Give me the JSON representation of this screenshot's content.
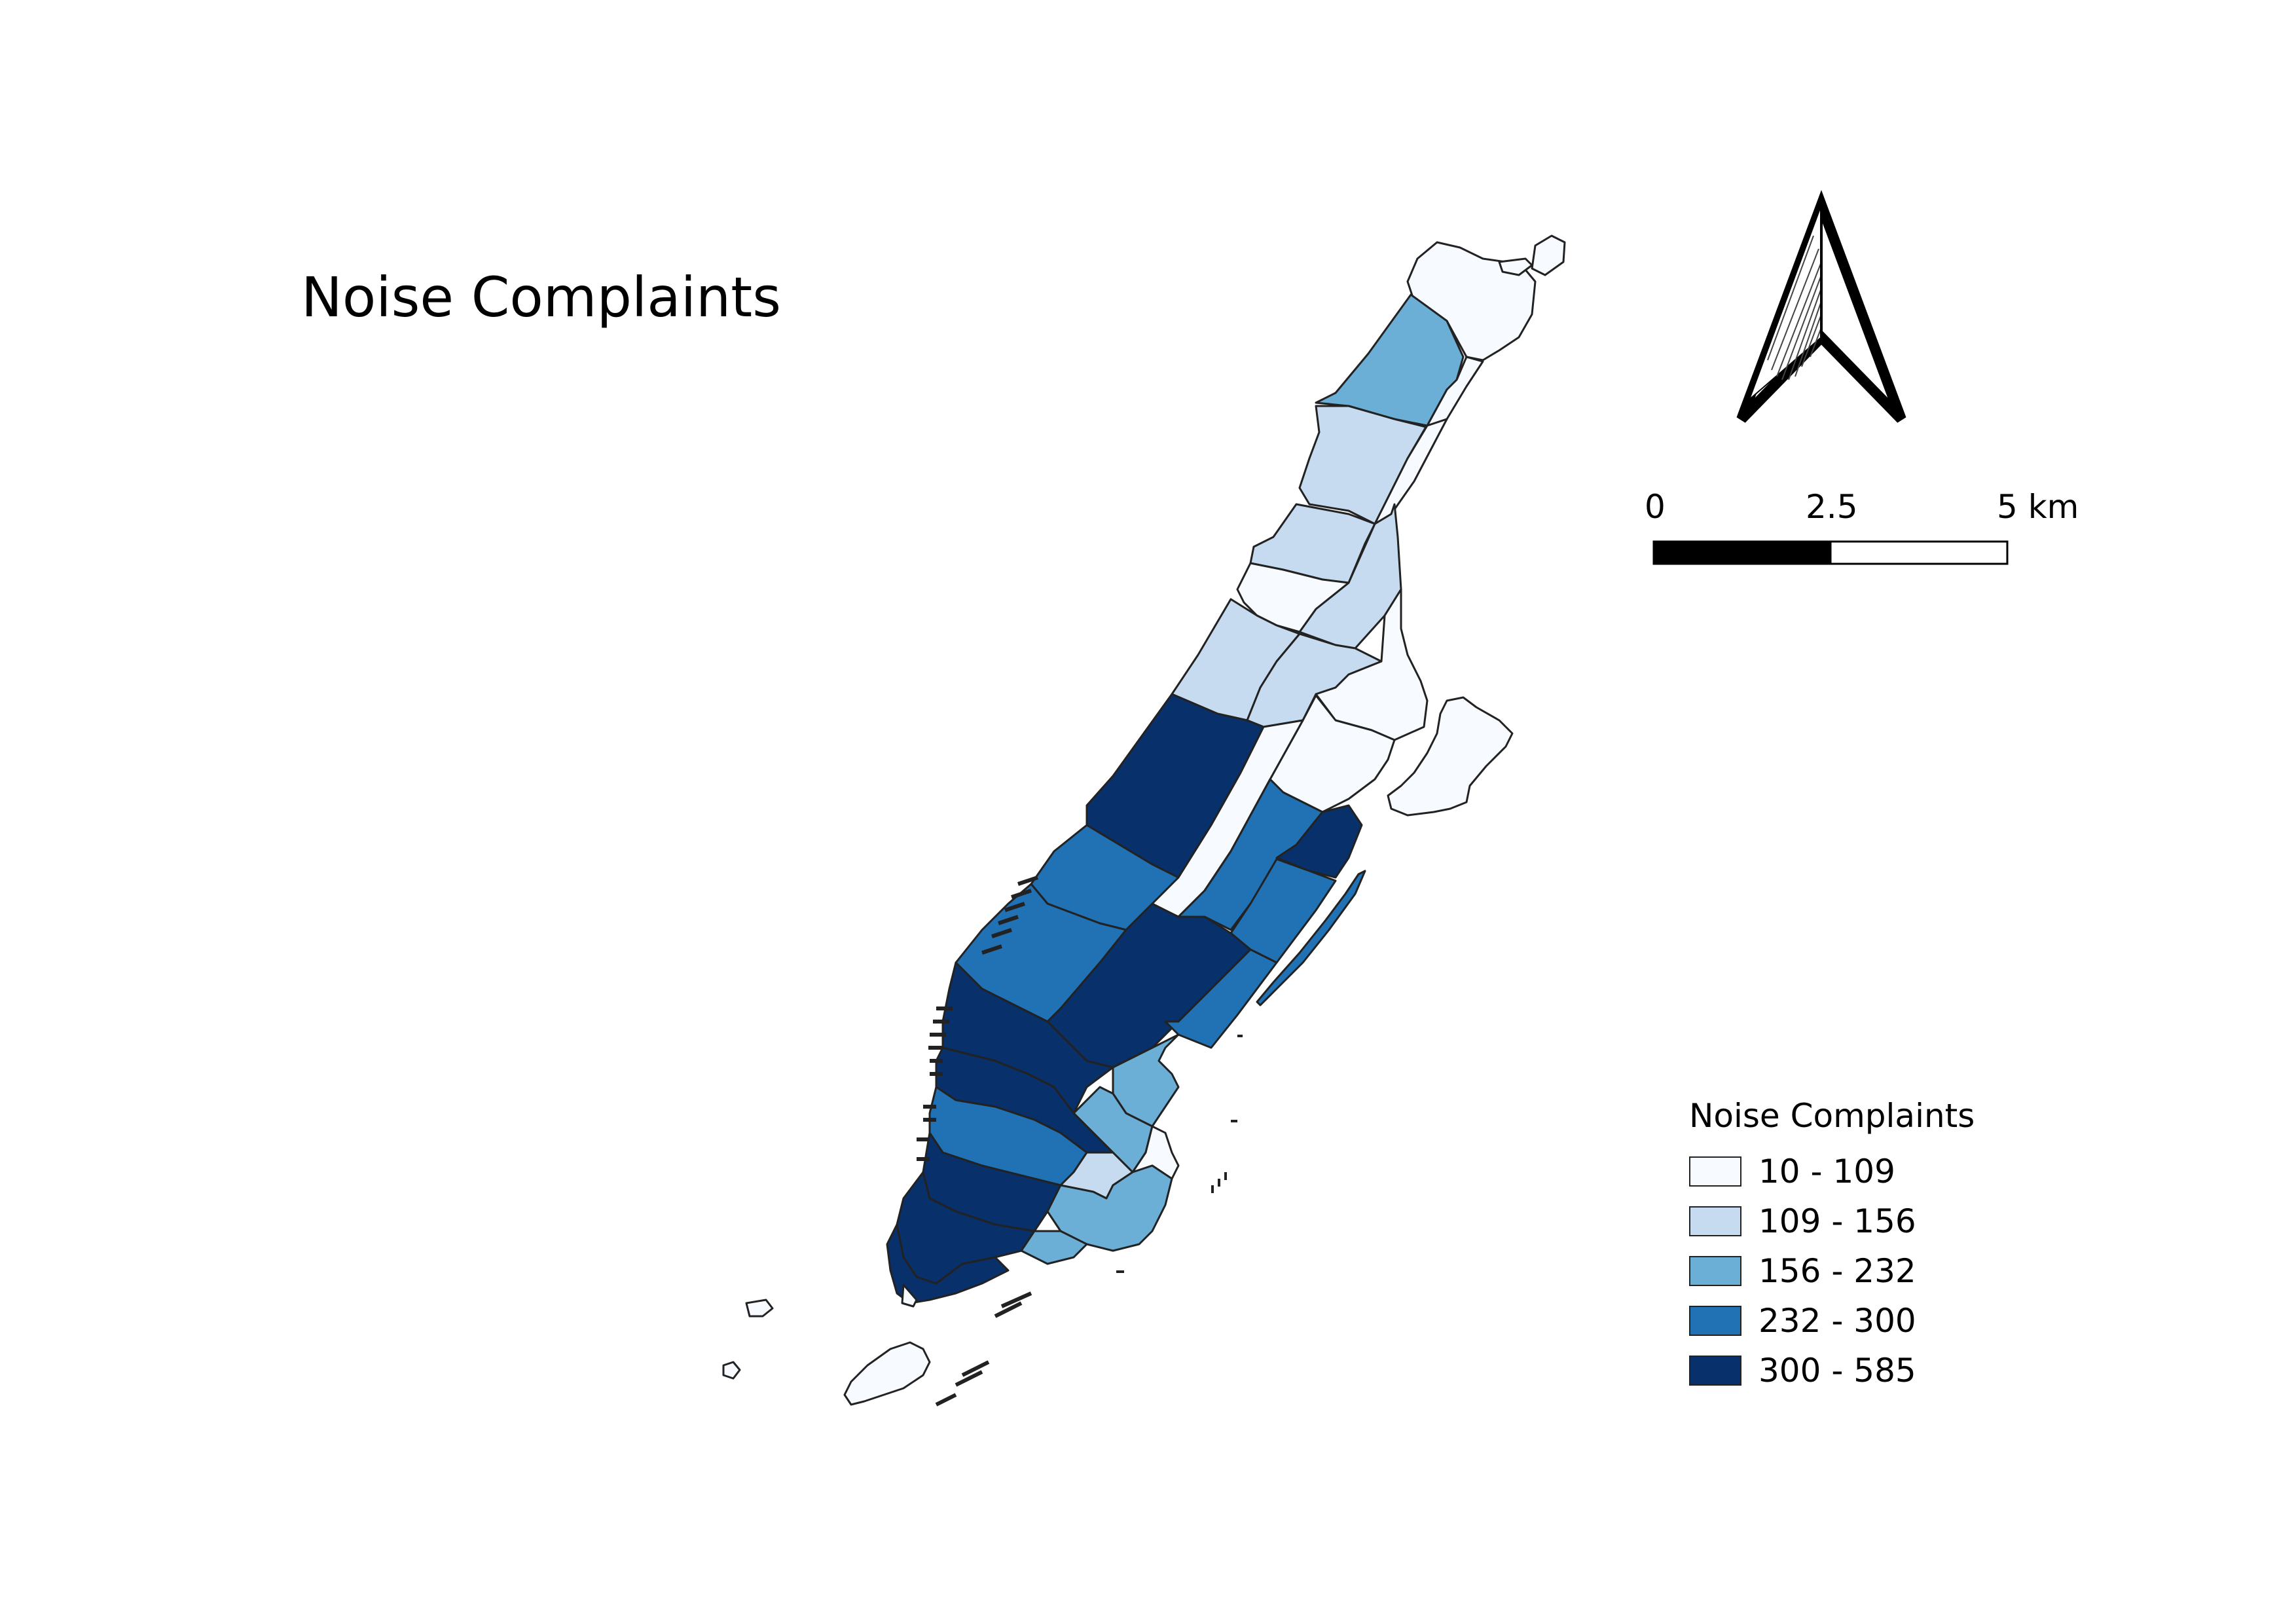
{
  "map": {
    "title": "Noise Complaints",
    "scale_bar": {
      "labels": [
        "0",
        "2.5",
        "5 km"
      ]
    },
    "north_arrow": {
      "icon": "north-arrow-icon"
    },
    "legend": {
      "title": "Noise Complaints",
      "classes": [
        {
          "label": "10 - 109",
          "color": "#f7fbff"
        },
        {
          "label": "109 - 156",
          "color": "#c6dbef"
        },
        {
          "label": "156 - 232",
          "color": "#6baed6"
        },
        {
          "label": "232 - 300",
          "color": "#2171b5"
        },
        {
          "label": "300 - 585",
          "color": "#08306b"
        }
      ]
    }
  }
}
